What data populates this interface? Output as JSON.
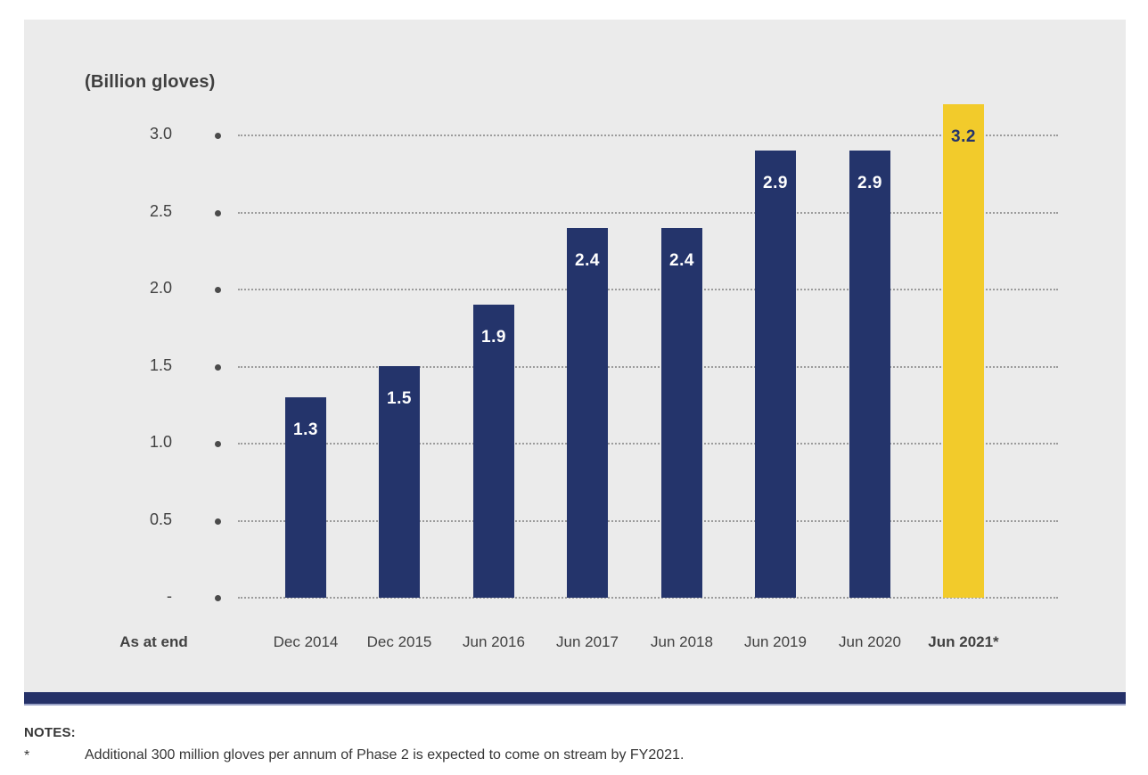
{
  "colors": {
    "panel_bg": "#EBEBEB",
    "bar_navy": "#24346B",
    "bar_yellow": "#F2CB2B",
    "bar_label_light": "#FFFFFF",
    "bar_label_dark": "#24346B",
    "grid_line": "#9B9B9B",
    "grid_dot": "#4B4B4B",
    "axis_text": "#414141",
    "footer_strip": "#253168",
    "footer_strip_edge": "#9AA3C7"
  },
  "chart_data": {
    "type": "bar",
    "title": "(Billion gloves)",
    "x_axis_caption": "As at end",
    "categories": [
      "Dec 2014",
      "Dec 2015",
      "Jun 2016",
      "Jun 2017",
      "Jun 2018",
      "Jun 2019",
      "Jun 2020",
      "Jun 2021*"
    ],
    "values": [
      1.3,
      1.5,
      1.9,
      2.4,
      2.4,
      2.9,
      2.9,
      3.2
    ],
    "bar_labels": [
      "1.3",
      "1.5",
      "1.9",
      "2.4",
      "2.4",
      "2.9",
      "2.9",
      "3.2"
    ],
    "highlight_index": 7,
    "yticks": [
      {
        "value": 3.0,
        "label": "3.0"
      },
      {
        "value": 2.5,
        "label": "2.5"
      },
      {
        "value": 2.0,
        "label": "2.0"
      },
      {
        "value": 1.5,
        "label": "1.5"
      },
      {
        "value": 1.0,
        "label": "1.0"
      },
      {
        "value": 0.5,
        "label": "0.5"
      },
      {
        "value": 0.0,
        "label": "-"
      }
    ],
    "ylim": [
      0,
      3.3
    ],
    "grid": "horizontal-dotted",
    "legend": "none"
  },
  "notes": {
    "heading": "NOTES:",
    "items": [
      {
        "marker": "*",
        "text": "Additional 300 million gloves per annum of Phase 2 is expected to come on stream by FY2021."
      }
    ]
  }
}
